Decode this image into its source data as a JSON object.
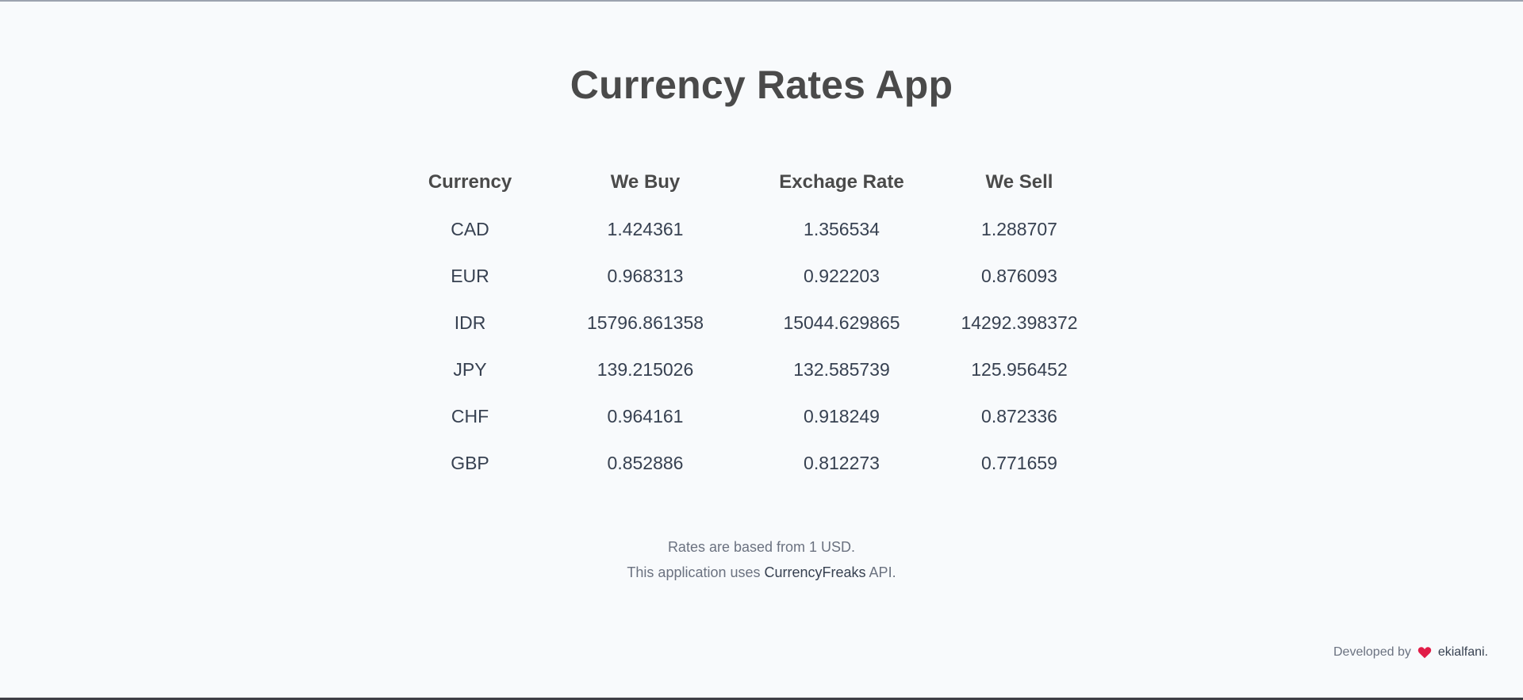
{
  "app": {
    "title": "Currency Rates App"
  },
  "table": {
    "headers": {
      "currency": "Currency",
      "we_buy": "We Buy",
      "exchange_rate": "Exchage Rate",
      "we_sell": "We Sell"
    },
    "rows": [
      {
        "currency": "CAD",
        "we_buy": "1.424361",
        "exchange_rate": "1.356534",
        "we_sell": "1.288707"
      },
      {
        "currency": "EUR",
        "we_buy": "0.968313",
        "exchange_rate": "0.922203",
        "we_sell": "0.876093"
      },
      {
        "currency": "IDR",
        "we_buy": "15796.861358",
        "exchange_rate": "15044.629865",
        "we_sell": "14292.398372"
      },
      {
        "currency": "JPY",
        "we_buy": "139.215026",
        "exchange_rate": "132.585739",
        "we_sell": "125.956452"
      },
      {
        "currency": "CHF",
        "we_buy": "0.964161",
        "exchange_rate": "0.918249",
        "we_sell": "0.872336"
      },
      {
        "currency": "GBP",
        "we_buy": "0.852886",
        "exchange_rate": "0.812273",
        "we_sell": "0.771659"
      }
    ]
  },
  "footer": {
    "rates_note": "Rates are based from 1 USD.",
    "api_note_prefix": "This application uses ",
    "api_name": "CurrencyFreaks",
    "api_note_suffix": " API."
  },
  "credit": {
    "prefix": "Developed by",
    "author": "ekialfani.",
    "icon": "heart-icon",
    "heart_color": "#e11d48"
  }
}
